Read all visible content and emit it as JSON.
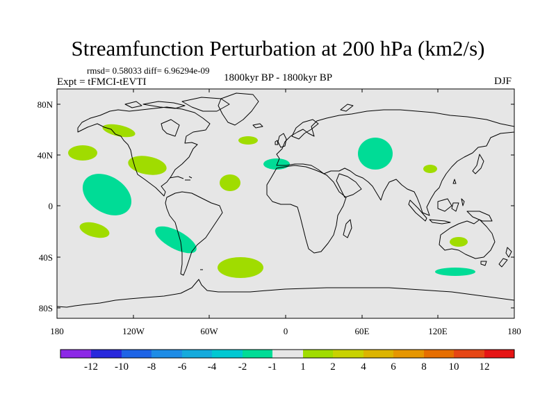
{
  "title": "Streamfunction Perturbation at 200 hPa (km2/s)",
  "stats": "rmsd= 0.58033 diff= 6.96294e-09",
  "experiment": "Expt = tFMCI-tEVTI",
  "period": "1800kyr BP - 1800kyr BP",
  "season": "DJF",
  "colors": {
    "ocean_background": "#e6e6e6",
    "negative_fill": "#00dc96",
    "positive_fill": "#a0dc00"
  },
  "map": {
    "lon_ticks": [
      "180",
      "120W",
      "60W",
      "0",
      "60E",
      "120E",
      "180"
    ],
    "lat_ticks": [
      "80N",
      "40N",
      "0",
      "40S",
      "80S"
    ]
  },
  "anomalies": [
    {
      "sign": "positive",
      "lon": -148,
      "lat": 60,
      "level": 1
    },
    {
      "sign": "positive",
      "lon": -165,
      "lat": 42,
      "level": 1
    },
    {
      "sign": "positive",
      "lon": -112,
      "lat": 32,
      "level": 1
    },
    {
      "sign": "negative",
      "lon": -143,
      "lat": 15,
      "level": -1
    },
    {
      "sign": "positive",
      "lon": -156,
      "lat": -19,
      "level": 1
    },
    {
      "sign": "negative",
      "lon": -88,
      "lat": -27,
      "level": -1
    },
    {
      "sign": "positive",
      "lon": -42,
      "lat": -48,
      "level": 1
    },
    {
      "sign": "positive",
      "lon": -45,
      "lat": 18,
      "level": 1
    },
    {
      "sign": "positive",
      "lon": -31,
      "lat": 51,
      "level": 1
    },
    {
      "sign": "negative",
      "lon": -8,
      "lat": 32,
      "level": -1
    },
    {
      "sign": "negative",
      "lon": 64,
      "lat": 42,
      "level": -1
    },
    {
      "sign": "positive",
      "lon": 111,
      "lat": 28,
      "level": 1
    },
    {
      "sign": "positive",
      "lon": 137,
      "lat": -28,
      "level": 1
    },
    {
      "sign": "negative",
      "lon": 138,
      "lat": -51,
      "level": -1
    }
  ],
  "colorbar": {
    "colors": [
      "#8c28e6",
      "#2828dc",
      "#1e64e6",
      "#1e8ce6",
      "#14aadc",
      "#00c8d2",
      "#00dc96",
      "#e6e6e6",
      "#a0dc00",
      "#c8d200",
      "#dcb400",
      "#e69600",
      "#e66e00",
      "#e64614",
      "#e61414"
    ],
    "labels": [
      "-12",
      "-10",
      "-8",
      "-6",
      "-4",
      "-2",
      "-1",
      "1",
      "2",
      "4",
      "6",
      "8",
      "10",
      "12"
    ]
  }
}
